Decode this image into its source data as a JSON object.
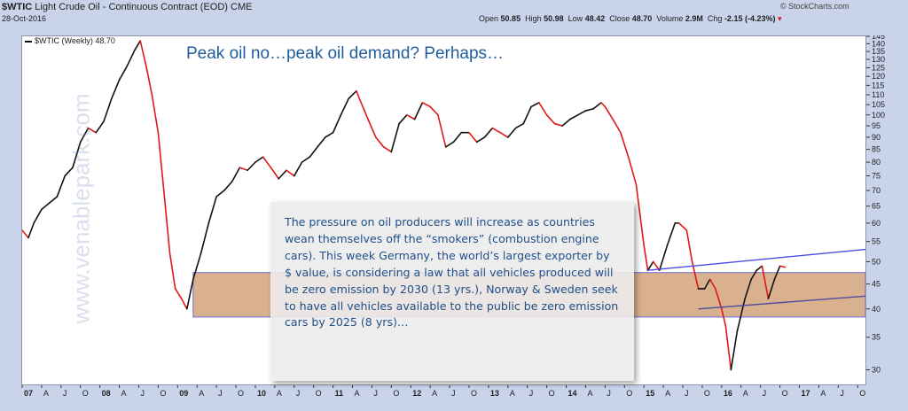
{
  "header": {
    "symbol": "$WTIC",
    "name": "Light Crude Oil - Continuous Contract (EOD)",
    "exchange": "CME",
    "date": "28-Oct-2016",
    "brand": "© StockCharts.com",
    "ohlc": {
      "open_label": "Open",
      "open": "50.85",
      "high_label": "High",
      "high": "50.98",
      "low_label": "Low",
      "low": "48.42",
      "close_label": "Close",
      "close": "48.70",
      "volume_label": "Volume",
      "volume": "2.9M",
      "chg_label": "Chg",
      "chg": "-2.15 (-4.23%)"
    }
  },
  "legend": "$WTIC (Weekly) 48.70",
  "headline": "Peak oil no…peak oil demand? Perhaps…",
  "watermark": "www.venablepark.com",
  "note": "The pressure on oil producers will increase as countries wean themselves off the “smokers” (combustion engine cars). This week Germany, the world’s largest exporter by $ value, is considering a law that all vehicles produced will be zero emission by 2030 (13 yrs.), Norway & Sweden seek to have all vehicles available to the public be zero emission cars by 2025 (8 yrs)…",
  "chart_data": {
    "type": "line",
    "title": "$WTIC Light Crude Oil - Continuous Contract (EOD)",
    "scale": "log",
    "ylim": [
      28,
      145
    ],
    "yticks": [
      30,
      35,
      40,
      45,
      50,
      55,
      60,
      65,
      70,
      75,
      80,
      85,
      90,
      95,
      100,
      105,
      110,
      115,
      120,
      125,
      130,
      135,
      140,
      145
    ],
    "xlim": [
      2007.0,
      2017.85
    ],
    "x_tick_labels": [
      {
        "x": 2007.0,
        "label": "07"
      },
      {
        "x": 2007.25,
        "label": "A"
      },
      {
        "x": 2007.5,
        "label": "J"
      },
      {
        "x": 2007.75,
        "label": "O"
      },
      {
        "x": 2008.0,
        "label": "08"
      },
      {
        "x": 2008.25,
        "label": "A"
      },
      {
        "x": 2008.5,
        "label": "J"
      },
      {
        "x": 2008.75,
        "label": "O"
      },
      {
        "x": 2009.0,
        "label": "09"
      },
      {
        "x": 2009.25,
        "label": "A"
      },
      {
        "x": 2009.5,
        "label": "J"
      },
      {
        "x": 2009.75,
        "label": "O"
      },
      {
        "x": 2010.0,
        "label": "10"
      },
      {
        "x": 2010.25,
        "label": "A"
      },
      {
        "x": 2010.5,
        "label": "J"
      },
      {
        "x": 2010.75,
        "label": "O"
      },
      {
        "x": 2011.0,
        "label": "11"
      },
      {
        "x": 2011.25,
        "label": "A"
      },
      {
        "x": 2011.5,
        "label": "J"
      },
      {
        "x": 2011.75,
        "label": "O"
      },
      {
        "x": 2012.0,
        "label": "12"
      },
      {
        "x": 2012.25,
        "label": "A"
      },
      {
        "x": 2012.5,
        "label": "J"
      },
      {
        "x": 2012.75,
        "label": "O"
      },
      {
        "x": 2013.0,
        "label": "13"
      },
      {
        "x": 2013.25,
        "label": "A"
      },
      {
        "x": 2013.5,
        "label": "J"
      },
      {
        "x": 2013.75,
        "label": "O"
      },
      {
        "x": 2014.0,
        "label": "14"
      },
      {
        "x": 2014.25,
        "label": "A"
      },
      {
        "x": 2014.5,
        "label": "J"
      },
      {
        "x": 2014.75,
        "label": "O"
      },
      {
        "x": 2015.0,
        "label": "15"
      },
      {
        "x": 2015.25,
        "label": "A"
      },
      {
        "x": 2015.5,
        "label": "J"
      },
      {
        "x": 2015.75,
        "label": "O"
      },
      {
        "x": 2016.0,
        "label": "16"
      },
      {
        "x": 2016.25,
        "label": "A"
      },
      {
        "x": 2016.5,
        "label": "J"
      },
      {
        "x": 2016.75,
        "label": "O"
      },
      {
        "x": 2017.0,
        "label": "17"
      },
      {
        "x": 2017.25,
        "label": "A"
      },
      {
        "x": 2017.5,
        "label": "J"
      },
      {
        "x": 2017.75,
        "label": "O"
      }
    ],
    "series": [
      {
        "name": "$WTIC (Weekly)",
        "x": [
          2007.0,
          2007.08,
          2007.15,
          2007.25,
          2007.35,
          2007.45,
          2007.55,
          2007.65,
          2007.75,
          2007.85,
          2007.95,
          2008.05,
          2008.15,
          2008.25,
          2008.35,
          2008.45,
          2008.52,
          2008.6,
          2008.67,
          2008.75,
          2008.83,
          2008.9,
          2008.97,
          2009.05,
          2009.12,
          2009.2,
          2009.3,
          2009.4,
          2009.5,
          2009.6,
          2009.7,
          2009.8,
          2009.9,
          2010.0,
          2010.1,
          2010.2,
          2010.3,
          2010.4,
          2010.5,
          2010.6,
          2010.7,
          2010.8,
          2010.9,
          2011.0,
          2011.1,
          2011.2,
          2011.3,
          2011.35,
          2011.45,
          2011.55,
          2011.65,
          2011.75,
          2011.85,
          2011.95,
          2012.05,
          2012.15,
          2012.25,
          2012.35,
          2012.45,
          2012.55,
          2012.65,
          2012.75,
          2012.85,
          2012.95,
          2013.05,
          2013.15,
          2013.25,
          2013.35,
          2013.45,
          2013.55,
          2013.65,
          2013.75,
          2013.85,
          2013.95,
          2014.05,
          2014.15,
          2014.25,
          2014.35,
          2014.45,
          2014.5,
          2014.6,
          2014.7,
          2014.8,
          2014.9,
          2015.0,
          2015.05,
          2015.12,
          2015.2,
          2015.3,
          2015.4,
          2015.45,
          2015.55,
          2015.62,
          2015.7,
          2015.78,
          2015.85,
          2015.92,
          2016.0,
          2016.05,
          2016.12,
          2016.2,
          2016.3,
          2016.38,
          2016.45,
          2016.52,
          2016.6,
          2016.68,
          2016.75,
          2016.82
        ],
        "y": [
          58,
          56,
          60,
          64,
          66,
          68,
          75,
          78,
          88,
          94,
          92,
          97,
          108,
          118,
          126,
          136,
          142,
          125,
          110,
          92,
          68,
          52,
          44,
          42,
          40,
          46,
          52,
          60,
          68,
          70,
          73,
          78,
          77,
          80,
          82,
          78,
          74,
          77,
          75,
          80,
          82,
          86,
          90,
          92,
          100,
          108,
          112,
          107,
          98,
          90,
          86,
          84,
          96,
          100,
          98,
          106,
          104,
          100,
          86,
          88,
          92,
          92,
          88,
          90,
          94,
          92,
          90,
          94,
          96,
          104,
          106,
          100,
          96,
          95,
          98,
          100,
          102,
          103,
          106,
          104,
          98,
          92,
          82,
          72,
          54,
          48,
          50,
          48,
          54,
          60,
          60,
          58,
          50,
          44,
          44,
          46,
          44,
          40,
          37,
          30,
          36,
          42,
          46,
          48,
          49,
          42,
          46,
          49,
          48.7
        ]
      }
    ],
    "support_band": {
      "low": 38.5,
      "high": 47.5,
      "x_from": 2009.2,
      "x_to": 2017.85
    },
    "trendlines": [
      {
        "x": [
          2015.05,
          2017.85
        ],
        "y": [
          48,
          53
        ]
      },
      {
        "x": [
          2015.7,
          2017.85
        ],
        "y": [
          40,
          42.5
        ]
      }
    ],
    "colors": {
      "up": "#111111",
      "down": "#e01818",
      "band": "#d4a37a",
      "band_border": "#6b6bd8",
      "trend_upper": "#4a4ae6",
      "trend_lower": "#4d4d9e"
    }
  }
}
